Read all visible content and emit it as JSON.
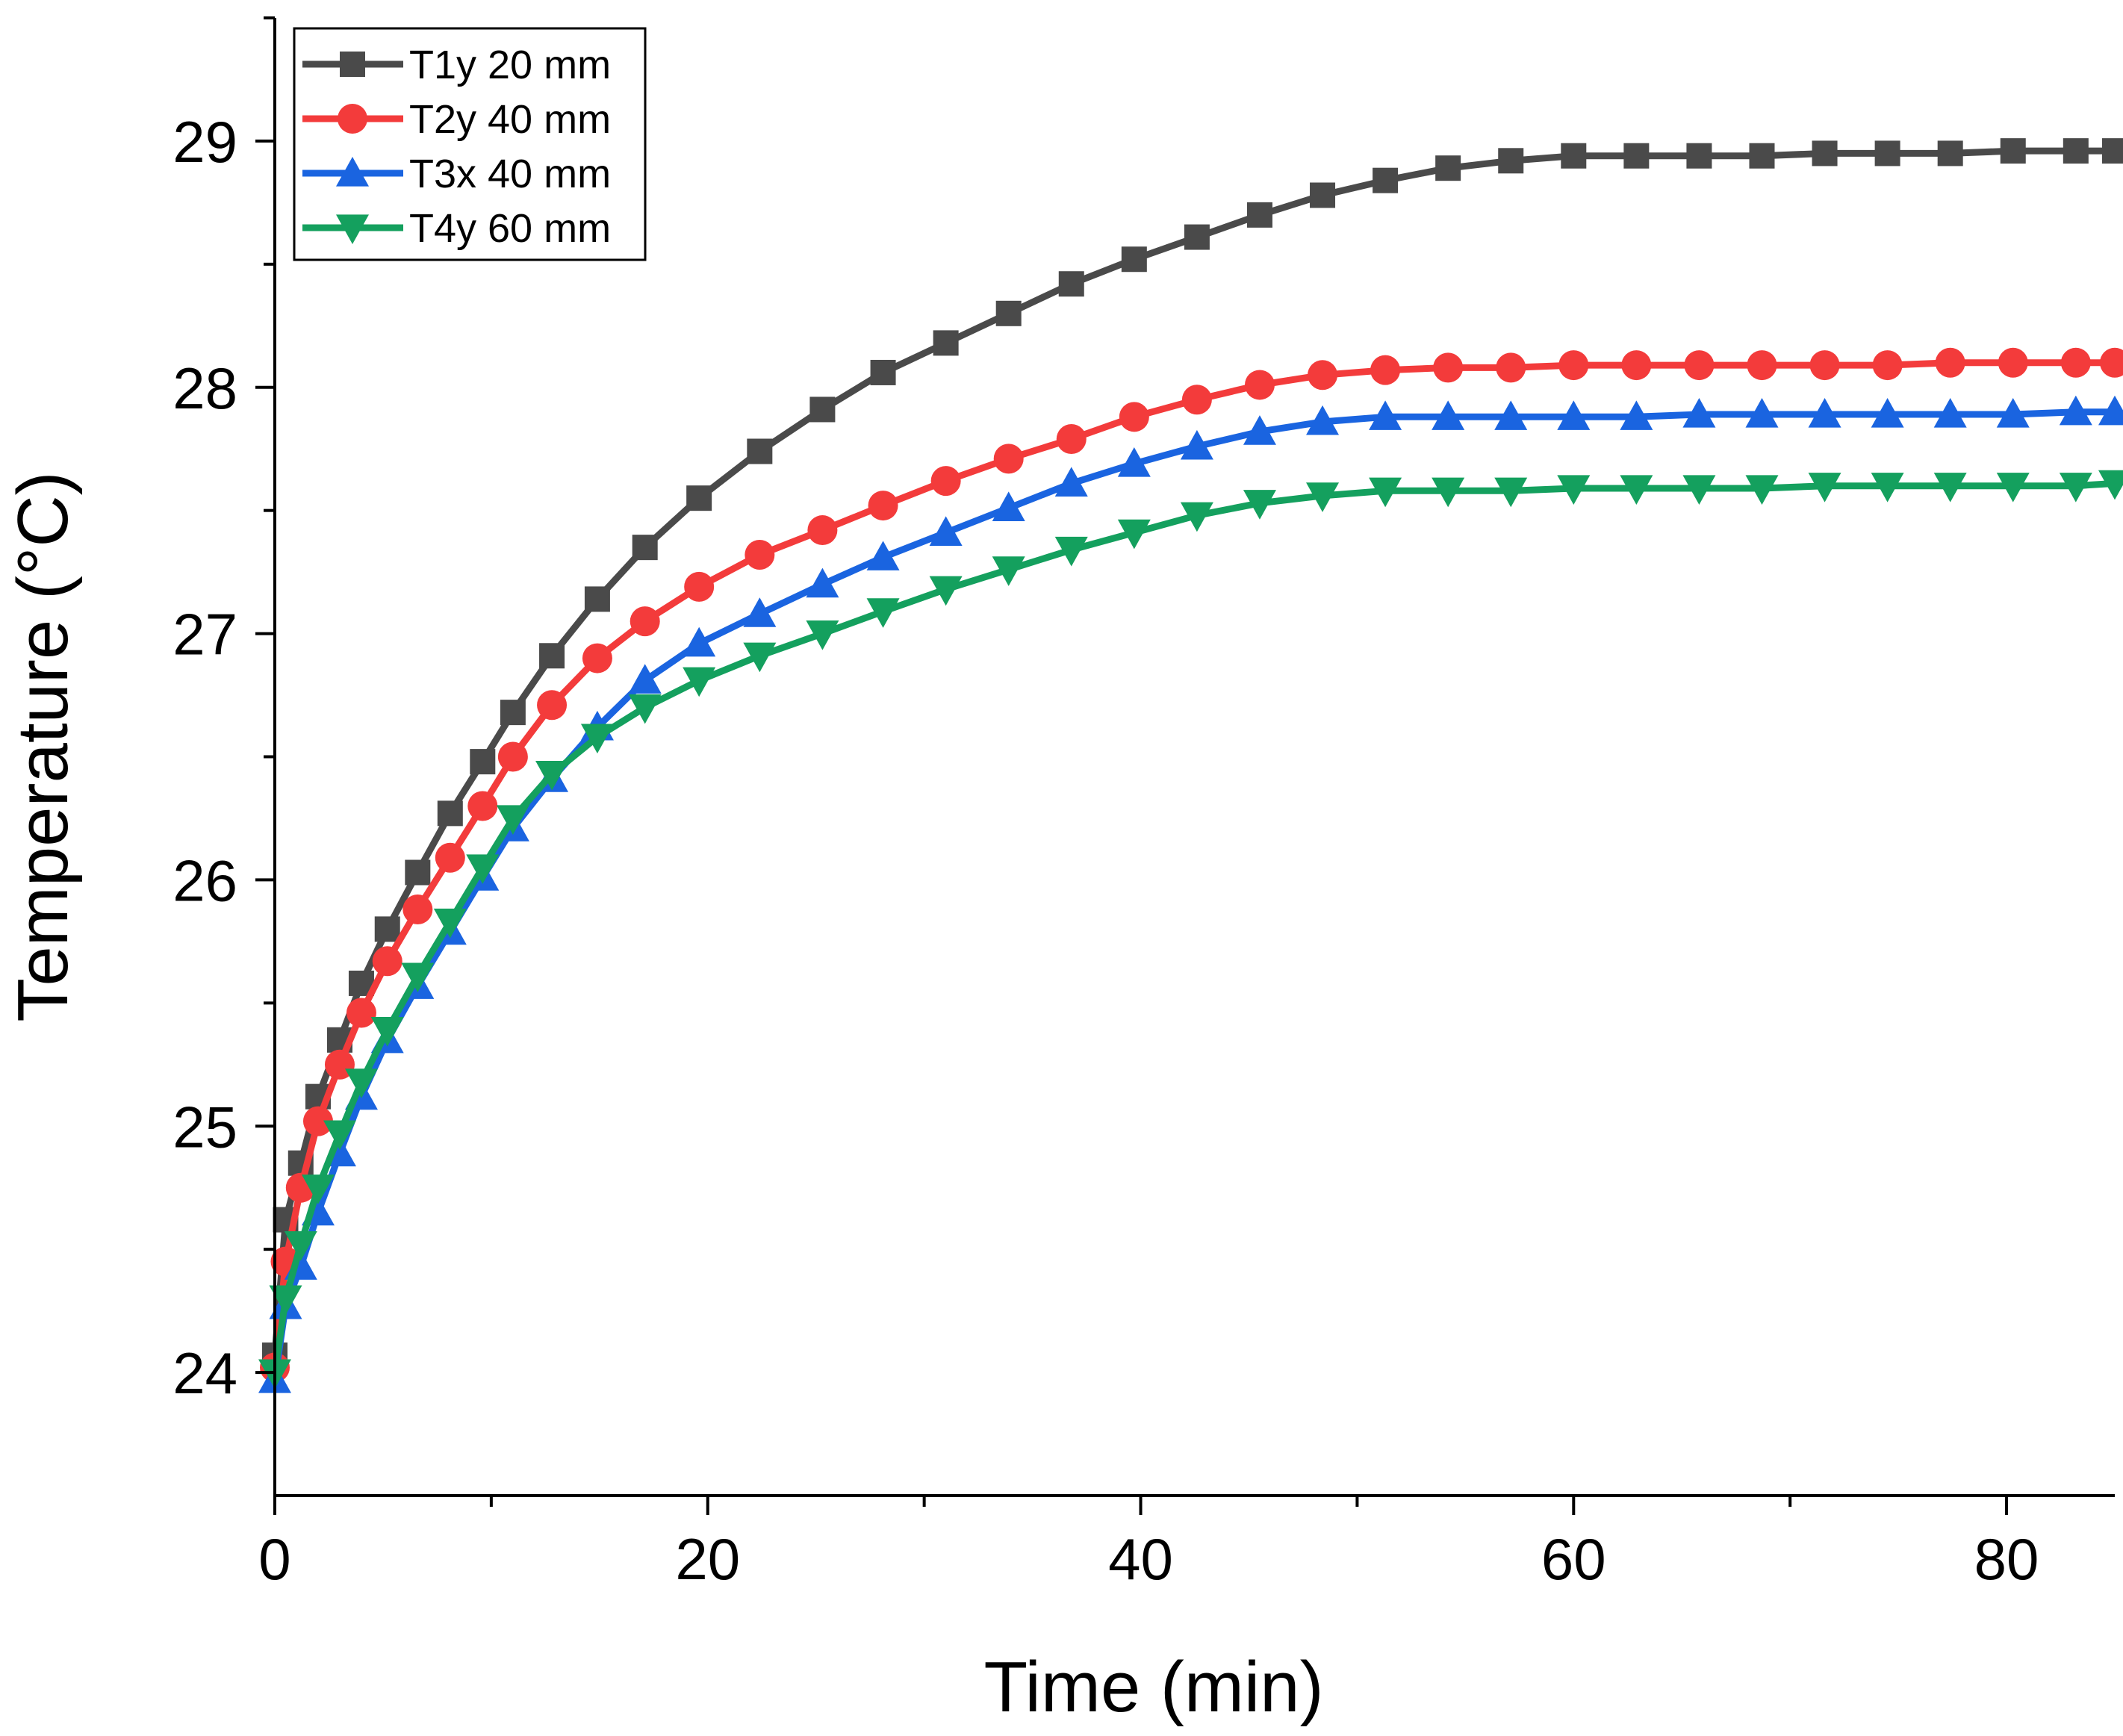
{
  "chart_data": {
    "type": "line",
    "title": "",
    "xlabel": "Time (min)",
    "ylabel": "Temperature (°C)",
    "xlim": [
      0,
      85
    ],
    "ylim": [
      23.5,
      29.5
    ],
    "xticks": [
      0,
      20,
      40,
      60,
      80
    ],
    "xminor": [
      10,
      30,
      50,
      70
    ],
    "yticks": [
      24,
      25,
      26,
      27,
      28,
      29
    ],
    "yminor": [
      24.5,
      25.5,
      26.5,
      27.5,
      28.5,
      29.5
    ],
    "legend_position": "top-left",
    "series": [
      {
        "name": "T1y 20 mm",
        "color": "#4a4a4a",
        "marker": "square",
        "x": [
          0,
          0.5,
          1.2,
          2,
          3,
          4,
          5.2,
          6.6,
          8.1,
          9.6,
          11.0,
          12.8,
          14.9,
          17.1,
          19.6,
          22.4,
          25.3,
          28.1,
          31.0,
          33.9,
          36.8,
          39.7,
          42.6,
          45.5,
          48.4,
          51.3,
          54.2,
          57.1,
          60.0,
          62.9,
          65.8,
          68.7,
          71.6,
          74.5,
          77.4,
          80.3,
          83.2,
          85
        ],
        "values": [
          24.07,
          24.62,
          24.85,
          25.12,
          25.35,
          25.58,
          25.8,
          26.03,
          26.27,
          26.48,
          26.68,
          26.91,
          27.14,
          27.35,
          27.55,
          27.74,
          27.91,
          28.06,
          28.18,
          28.3,
          28.42,
          28.52,
          28.61,
          28.7,
          28.78,
          28.84,
          28.89,
          28.92,
          28.94,
          28.94,
          28.94,
          28.94,
          28.95,
          28.95,
          28.95,
          28.96,
          28.96,
          28.96
        ]
      },
      {
        "name": "T2y 40 mm",
        "color": "#f33b3b",
        "marker": "circle",
        "x": [
          0,
          0.5,
          1.2,
          2,
          3,
          4,
          5.2,
          6.6,
          8.1,
          9.6,
          11.0,
          12.8,
          14.9,
          17.1,
          19.6,
          22.4,
          25.3,
          28.1,
          31.0,
          33.9,
          36.8,
          39.7,
          42.6,
          45.5,
          48.4,
          51.3,
          54.2,
          57.1,
          60.0,
          62.9,
          65.8,
          68.7,
          71.6,
          74.5,
          77.4,
          80.3,
          83.2,
          85
        ],
        "values": [
          24.02,
          24.45,
          24.75,
          25.02,
          25.25,
          25.46,
          25.67,
          25.88,
          26.09,
          26.3,
          26.5,
          26.71,
          26.9,
          27.05,
          27.19,
          27.32,
          27.42,
          27.52,
          27.62,
          27.71,
          27.79,
          27.88,
          27.95,
          28.01,
          28.05,
          28.07,
          28.08,
          28.08,
          28.09,
          28.09,
          28.09,
          28.09,
          28.09,
          28.09,
          28.1,
          28.1,
          28.1,
          28.1
        ]
      },
      {
        "name": "T3x 40 mm",
        "color": "#1a64e0",
        "marker": "triangle-up",
        "x": [
          0,
          0.5,
          1.2,
          2,
          3,
          4,
          5.2,
          6.6,
          8.1,
          9.6,
          11.0,
          12.8,
          14.9,
          17.1,
          19.6,
          22.4,
          25.3,
          28.1,
          31.0,
          33.9,
          36.8,
          39.7,
          42.6,
          45.5,
          48.4,
          51.3,
          54.2,
          57.1,
          60.0,
          62.9,
          65.8,
          68.7,
          71.6,
          74.5,
          77.4,
          80.3,
          83.2,
          85
        ],
        "values": [
          23.97,
          24.27,
          24.43,
          24.65,
          24.89,
          25.12,
          25.35,
          25.57,
          25.79,
          26.01,
          26.21,
          26.41,
          26.62,
          26.81,
          26.96,
          27.08,
          27.2,
          27.31,
          27.41,
          27.51,
          27.61,
          27.69,
          27.76,
          27.82,
          27.86,
          27.88,
          27.88,
          27.88,
          27.88,
          27.88,
          27.89,
          27.89,
          27.89,
          27.89,
          27.89,
          27.89,
          27.9,
          27.9
        ]
      },
      {
        "name": "T4y 60 mm",
        "color": "#14a05e",
        "marker": "triangle-down",
        "x": [
          0,
          0.5,
          1.2,
          2,
          3,
          4,
          5.2,
          6.6,
          8.1,
          9.6,
          11.0,
          12.8,
          14.9,
          17.1,
          19.6,
          22.4,
          25.3,
          28.1,
          31.0,
          33.9,
          36.8,
          39.7,
          42.6,
          45.5,
          48.4,
          51.3,
          54.2,
          57.1,
          60.0,
          62.9,
          65.8,
          68.7,
          71.6,
          74.5,
          77.4,
          80.3,
          83.2,
          85
        ],
        "values": [
          24.0,
          24.3,
          24.52,
          24.75,
          24.97,
          25.18,
          25.39,
          25.61,
          25.83,
          26.05,
          26.25,
          26.43,
          26.58,
          26.7,
          26.81,
          26.91,
          27.0,
          27.09,
          27.18,
          27.26,
          27.34,
          27.41,
          27.48,
          27.53,
          27.56,
          27.58,
          27.58,
          27.58,
          27.59,
          27.59,
          27.59,
          27.59,
          27.6,
          27.6,
          27.6,
          27.6,
          27.6,
          27.61
        ]
      }
    ]
  }
}
